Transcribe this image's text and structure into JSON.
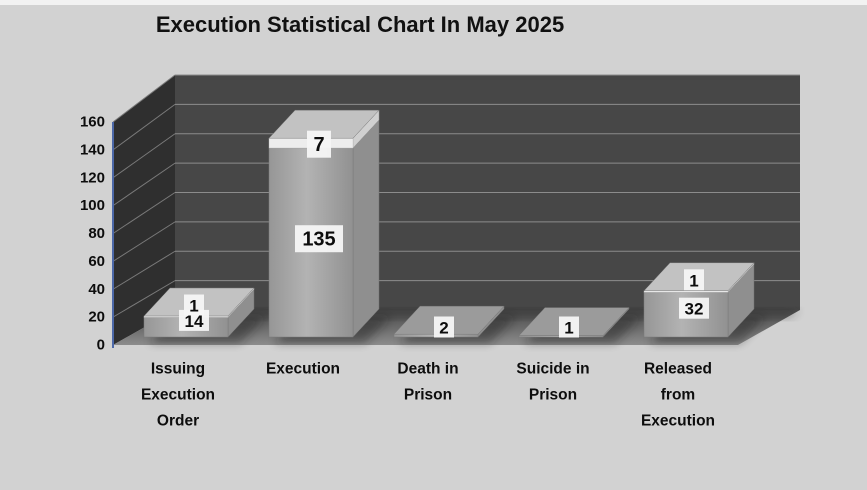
{
  "page": {
    "background_color": "#d2d2d2"
  },
  "chart_data": {
    "type": "bar",
    "projection": "3d",
    "stacked": true,
    "title": "Execution Statistical Chart In May 2025",
    "categories": [
      "Issuing Execution Order",
      "Execution",
      "Death in Prison",
      "Suicide in Prison",
      "Released from Execution"
    ],
    "category_label_lines": [
      [
        "Issuing",
        "Execution",
        "Order"
      ],
      [
        "Execution"
      ],
      [
        "Death in",
        "Prison"
      ],
      [
        "Suicide in",
        "Prison"
      ],
      [
        "Released",
        "from",
        "Execution"
      ]
    ],
    "series": [
      {
        "name": "primary-gray",
        "color": "#a4a4a4",
        "values": [
          14,
          135,
          2,
          1,
          32
        ]
      },
      {
        "name": "secondary-white",
        "color": "#ededed",
        "values": [
          1,
          7,
          0,
          0,
          1
        ]
      }
    ],
    "ylim": [
      0,
      160
    ],
    "ytick_step": 20,
    "yticks": [
      0,
      20,
      40,
      60,
      80,
      100,
      120,
      140,
      160
    ],
    "grid": true,
    "legend": false,
    "data_labels_shown": true,
    "colors": {
      "back_wall": "#474747",
      "side_wall": "#2f2f2f",
      "floor_dark": "#4a4a4a",
      "floor_light": "#8f8f8f",
      "gridline": "#8c8c8c",
      "side_gridline": "#7a7a7a",
      "axis_line": "#4c68a8",
      "bar_front": "#a4a4a4",
      "bar_side": "#8f8f8f",
      "bar_top": "#9b9b9b",
      "white_front": "#ededed",
      "white_side": "#d0d0d0",
      "white_top": "#c2c2c2",
      "label_patch": "#f5f5f5",
      "text": "#0d0d0d"
    }
  }
}
